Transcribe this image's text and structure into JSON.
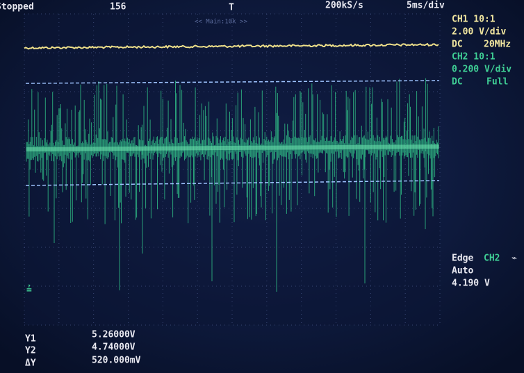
{
  "status": {
    "state": "Stopped",
    "count": "156",
    "sample_rate": "200kS/s",
    "timebase": "5ms/div",
    "zoom": "<< Main:10k >>"
  },
  "channels": [
    {
      "label": "CH1 10:1",
      "scale": "2.00 V/div",
      "coupling": "DC",
      "bandwidth": "20MHz"
    },
    {
      "label": "CH2 10:1",
      "scale": "0.200 V/div",
      "coupling": "DC",
      "bandwidth": "Full"
    }
  ],
  "trigger": {
    "type": "Edge",
    "source": "CH2",
    "mode": "Auto",
    "level": "4.190 V"
  },
  "cursors": [
    {
      "name": "Y1",
      "value": "5.26000V"
    },
    {
      "name": "Y2",
      "value": "4.74000V"
    },
    {
      "name": "ΔY",
      "value": "520.000mV"
    }
  ]
}
